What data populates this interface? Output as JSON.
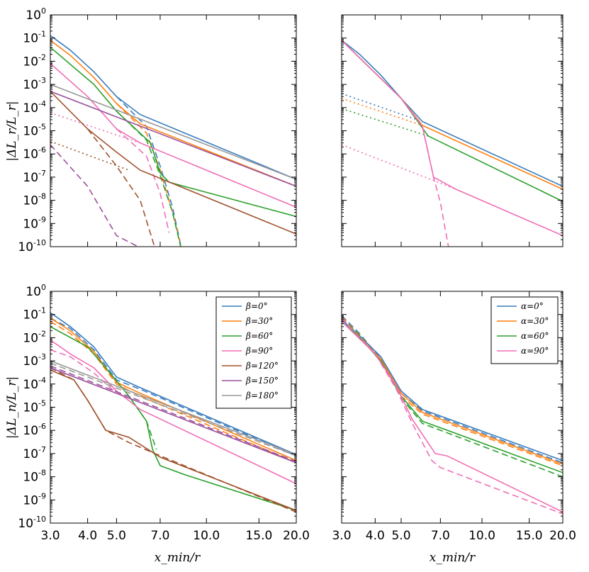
{
  "figure": {
    "ylabel_top": "|ΔL_r/L_r|",
    "ylabel_bottom": "|ΔL_n/L_r|",
    "xlabel": "x_min/r"
  },
  "chart_data": [
    {
      "id": "top-left",
      "type": "line",
      "xscale": "log",
      "yscale": "log",
      "xlim": [
        3.0,
        20.0
      ],
      "ylim": [
        1e-10,
        1
      ],
      "x_ticks": [
        "3.0",
        "4.0",
        "5.0",
        "7.0",
        "10.0",
        "15.0",
        "20.0"
      ],
      "y_ticks": [
        "10^0",
        "10^-1",
        "10^-2",
        "10^-3",
        "10^-4",
        "10^-5",
        "10^-6",
        "10^-7",
        "10^-8",
        "10^-9",
        "10^-10"
      ],
      "show_x_tick_labels": false,
      "legend": null,
      "series": [
        {
          "name": "β=0°",
          "color": "#3a7dbf",
          "style": "solid",
          "x": [
            3,
            3.5,
            4.2,
            5,
            6,
            20
          ],
          "y": [
            0.13,
            0.03,
            0.0035,
            0.0003,
            5e-05,
            8e-08
          ]
        },
        {
          "name": "β=0° (dashed)",
          "color": "#3a7dbf",
          "style": "dashed",
          "x": [
            5,
            6.3,
            7,
            7.7,
            8.2
          ],
          "y": [
            0.0003,
            1.5e-05,
            3e-07,
            5e-09,
            1.2e-10
          ]
        },
        {
          "name": "β=30°",
          "color": "#ff7f0e",
          "style": "solid",
          "x": [
            3,
            3.5,
            4.2,
            5,
            6,
            20
          ],
          "y": [
            0.08,
            0.018,
            0.002,
            0.00015,
            2e-05,
            4e-08
          ]
        },
        {
          "name": "β=30° (dashed)",
          "color": "#ff7f0e",
          "style": "dashed",
          "x": [
            5,
            6.3,
            7,
            7.7,
            8.2
          ],
          "y": [
            0.00015,
            8e-06,
            2e-07,
            3e-09,
            1.1e-10
          ]
        },
        {
          "name": "β=60°",
          "color": "#2ca02c",
          "style": "solid",
          "x": [
            3,
            4.2,
            5,
            6.5,
            7,
            7.5,
            20
          ],
          "y": [
            0.04,
            0.001,
            7e-05,
            3e-06,
            1.5e-07,
            6e-08,
            2e-09
          ]
        },
        {
          "name": "β=60° (dashed)",
          "color": "#2ca02c",
          "style": "dashed",
          "x": [
            5,
            6.3,
            7,
            7.7,
            8.2
          ],
          "y": [
            7e-05,
            4e-06,
            1.2e-07,
            3e-09,
            1e-10
          ]
        },
        {
          "name": "β=90°",
          "color": "#f06fb5",
          "style": "solid",
          "x": [
            3,
            4,
            5,
            6,
            20
          ],
          "y": [
            0.008,
            0.0003,
            1.2e-05,
            3e-06,
            5e-09
          ]
        },
        {
          "name": "β=90° (dashed)",
          "color": "#f06fb5",
          "style": "dashed",
          "x": [
            5,
            6.3,
            7,
            7.5
          ],
          "y": [
            1.2e-05,
            8e-07,
            2e-08,
            4e-10
          ]
        },
        {
          "name": "β=90° (dotted)",
          "color": "#f06fb5",
          "style": "dotted",
          "x": [
            3,
            6
          ],
          "y": [
            6e-05,
            3e-06
          ]
        },
        {
          "name": "β=120°",
          "color": "#a0522d",
          "style": "solid",
          "x": [
            3,
            4,
            5,
            6,
            20
          ],
          "y": [
            0.0005,
            1.2e-05,
            1.2e-06,
            2e-07,
            3.5e-10
          ]
        },
        {
          "name": "β=120° (dashed)",
          "color": "#a0522d",
          "style": "dashed",
          "x": [
            4,
            5,
            6,
            6.7
          ],
          "y": [
            1.2e-05,
            3e-07,
            1e-08,
            1e-10
          ]
        },
        {
          "name": "β=120° (dotted)",
          "color": "#a0522d",
          "style": "dotted",
          "x": [
            3,
            5.5
          ],
          "y": [
            3.5e-06,
            2e-07
          ]
        },
        {
          "name": "β=150°",
          "color": "#9b4f9b",
          "style": "solid",
          "x": [
            3,
            20
          ],
          "y": [
            0.0005,
            4e-08
          ]
        },
        {
          "name": "β=150° (dashed)",
          "color": "#9b4f9b",
          "style": "dashed",
          "x": [
            3,
            4,
            5,
            6
          ],
          "y": [
            2.5e-06,
            4e-08,
            3e-10,
            9e-11
          ]
        },
        {
          "name": "β=180°",
          "color": "#999999",
          "style": "solid",
          "x": [
            3,
            20
          ],
          "y": [
            0.001,
            8e-08
          ]
        }
      ]
    },
    {
      "id": "top-right",
      "type": "line",
      "xscale": "log",
      "yscale": "log",
      "xlim": [
        3.0,
        20.0
      ],
      "ylim": [
        1e-10,
        1
      ],
      "x_ticks": [
        "3.0",
        "4.0",
        "5.0",
        "7.0",
        "10.0",
        "15.0",
        "20.0"
      ],
      "y_ticks": [],
      "show_x_tick_labels": false,
      "show_y_tick_labels": false,
      "legend": null,
      "series": [
        {
          "name": "α=0°",
          "color": "#3a7dbf",
          "style": "solid",
          "x": [
            3,
            3.5,
            4.2,
            5,
            6,
            20
          ],
          "y": [
            0.08,
            0.02,
            0.0025,
            0.00025,
            2.5e-05,
            4e-08
          ]
        },
        {
          "name": "α=0° (dotted)",
          "color": "#3a7dbf",
          "style": "dotted",
          "x": [
            3,
            6
          ],
          "y": [
            0.0004,
            2.5e-05
          ]
        },
        {
          "name": "α=30°",
          "color": "#ff7f0e",
          "style": "solid",
          "x": [
            3,
            5,
            6,
            20
          ],
          "y": [
            0.08,
            0.00025,
            1.7e-05,
            3e-08
          ]
        },
        {
          "name": "α=30° (dotted)",
          "color": "#ff7f0e",
          "style": "dotted",
          "x": [
            3,
            6
          ],
          "y": [
            0.00025,
            1.7e-05
          ]
        },
        {
          "name": "α=60°",
          "color": "#2ca02c",
          "style": "solid",
          "x": [
            3,
            5,
            6.3,
            20
          ],
          "y": [
            0.08,
            0.00025,
            6e-06,
            9e-09
          ]
        },
        {
          "name": "α=60° (dotted)",
          "color": "#2ca02c",
          "style": "dotted",
          "x": [
            3,
            6.3
          ],
          "y": [
            9e-05,
            6e-06
          ]
        },
        {
          "name": "α=90°",
          "color": "#f06fb5",
          "style": "solid",
          "x": [
            3,
            5,
            6,
            6.6,
            8,
            20
          ],
          "y": [
            0.08,
            0.00025,
            1.5e-05,
            1e-07,
            3e-08,
            3e-10
          ]
        },
        {
          "name": "α=90° (dashed)",
          "color": "#f06fb5",
          "style": "dashed",
          "x": [
            6,
            6.6,
            7,
            7.5
          ],
          "y": [
            1.5e-05,
            1e-07,
            8e-09,
            1e-10
          ]
        },
        {
          "name": "α=90° (dotted)",
          "color": "#f06fb5",
          "style": "dotted",
          "x": [
            3,
            8
          ],
          "y": [
            2.5e-06,
            3e-08
          ]
        }
      ]
    },
    {
      "id": "bottom-left",
      "type": "line",
      "xscale": "log",
      "yscale": "log",
      "xlim": [
        3.0,
        20.0
      ],
      "ylim": [
        1e-10,
        1
      ],
      "x_ticks": [
        "3.0",
        "4.0",
        "5.0",
        "7.0",
        "10.0",
        "15.0",
        "20.0"
      ],
      "y_ticks": [
        "10^0",
        "10^-1",
        "10^-2",
        "10^-3",
        "10^-4",
        "10^-5",
        "10^-6",
        "10^-7",
        "10^-8",
        "10^-9",
        "10^-10"
      ],
      "show_x_tick_labels": true,
      "legend": "top-right",
      "legend_entries": [
        {
          "label": "β=0°",
          "color": "#3a7dbf"
        },
        {
          "label": "β=30°",
          "color": "#ff7f0e"
        },
        {
          "label": "β=60°",
          "color": "#2ca02c"
        },
        {
          "label": "β=90°",
          "color": "#f06fb5"
        },
        {
          "label": "β=120°",
          "color": "#a0522d"
        },
        {
          "label": "β=150°",
          "color": "#9b4f9b"
        },
        {
          "label": "β=180°",
          "color": "#999999"
        }
      ],
      "series": [
        {
          "name": "β=0°",
          "color": "#3a7dbf",
          "style": "solid",
          "x": [
            3,
            3.5,
            4.2,
            5,
            6,
            20
          ],
          "y": [
            0.12,
            0.03,
            0.004,
            0.0002,
            7e-05,
            9e-08
          ]
        },
        {
          "name": "β=0° (dashed)",
          "color": "#3a7dbf",
          "style": "dashed",
          "x": [
            3,
            3.5,
            4.2,
            5,
            6,
            20
          ],
          "y": [
            0.07,
            0.025,
            0.003,
            0.00015,
            6e-05,
            8e-08
          ]
        },
        {
          "name": "β=30°",
          "color": "#ff7f0e",
          "style": "solid",
          "x": [
            3,
            3.5,
            4.2,
            5,
            6,
            20
          ],
          "y": [
            0.07,
            0.02,
            0.0025,
            0.00012,
            4e-05,
            5e-08
          ]
        },
        {
          "name": "β=30° (dashed)",
          "color": "#ff7f0e",
          "style": "dashed",
          "x": [
            3,
            3.5,
            4.2,
            5,
            6,
            20
          ],
          "y": [
            0.05,
            0.015,
            0.002,
            0.0001,
            3e-05,
            4e-08
          ]
        },
        {
          "name": "β=60°",
          "color": "#2ca02c",
          "style": "solid",
          "x": [
            3,
            4,
            4.6,
            5.5,
            6.3,
            6.6,
            7,
            8.5,
            20
          ],
          "y": [
            0.03,
            0.004,
            0.0005,
            3e-05,
            2.5e-06,
            1.5e-07,
            3e-08,
            1.2e-08,
            3.5e-10
          ]
        },
        {
          "name": "β=60° (dashed)",
          "color": "#2ca02c",
          "style": "dashed",
          "x": [
            5.5,
            6.3,
            6.8
          ],
          "y": [
            3e-05,
            2.5e-06,
            1.5e-07
          ]
        },
        {
          "name": "β=90°",
          "color": "#f06fb5",
          "style": "solid",
          "x": [
            3,
            3.5,
            4.2,
            5,
            6,
            20
          ],
          "y": [
            0.008,
            0.002,
            0.0005,
            5e-05,
            8e-06,
            5e-09
          ]
        },
        {
          "name": "β=90° (dashed)",
          "color": "#f06fb5",
          "style": "dashed",
          "x": [
            3,
            3.5,
            4.2,
            5
          ],
          "y": [
            0.003,
            0.0015,
            0.0003,
            4e-05
          ]
        },
        {
          "name": "β=120°",
          "color": "#a0522d",
          "style": "solid",
          "x": [
            3,
            3.6,
            4,
            4.6,
            5.5,
            7,
            20
          ],
          "y": [
            0.0004,
            0.00015,
            2e-05,
            1e-06,
            5e-07,
            7e-08,
            3.5e-10
          ]
        },
        {
          "name": "β=120° (dashed)",
          "color": "#a0522d",
          "style": "dashed",
          "x": [
            3,
            3.6,
            4,
            4.6,
            5.5,
            6.5,
            20
          ],
          "y": [
            0.0005,
            0.00015,
            2e-05,
            1e-06,
            3e-07,
            1.2e-07,
            3e-10
          ]
        },
        {
          "name": "β=150°",
          "color": "#9b4f9b",
          "style": "solid",
          "x": [
            3,
            20
          ],
          "y": [
            0.0005,
            4e-08
          ]
        },
        {
          "name": "β=150° (dashed)",
          "color": "#9b4f9b",
          "style": "dashed",
          "x": [
            3,
            20
          ],
          "y": [
            0.0006,
            4.5e-08
          ]
        },
        {
          "name": "β=180°",
          "color": "#999999",
          "style": "solid",
          "x": [
            3,
            20
          ],
          "y": [
            0.001,
            9e-08
          ]
        },
        {
          "name": "β=180° (dashed)",
          "color": "#999999",
          "style": "dashed",
          "x": [
            3,
            20
          ],
          "y": [
            0.0008,
            8e-08
          ]
        }
      ]
    },
    {
      "id": "bottom-right",
      "type": "line",
      "xscale": "log",
      "yscale": "log",
      "xlim": [
        3.0,
        20.0
      ],
      "ylim": [
        1e-10,
        1
      ],
      "x_ticks": [
        "3.0",
        "4.0",
        "5.0",
        "7.0",
        "10.0",
        "15.0",
        "20.0"
      ],
      "y_ticks": [],
      "show_x_tick_labels": true,
      "show_y_tick_labels": false,
      "legend": "top-right",
      "legend_entries": [
        {
          "label": "α=0°",
          "color": "#3a7dbf"
        },
        {
          "label": "α=30°",
          "color": "#ff7f0e"
        },
        {
          "label": "α=60°",
          "color": "#2ca02c"
        },
        {
          "label": "α=90°",
          "color": "#f06fb5"
        }
      ],
      "series": [
        {
          "name": "α=0°",
          "color": "#3a7dbf",
          "style": "solid",
          "x": [
            3,
            3.5,
            4.2,
            5,
            6,
            20
          ],
          "y": [
            0.06,
            0.012,
            0.0015,
            5e-05,
            8e-06,
            5e-08
          ]
        },
        {
          "name": "α=0° (dashed)",
          "color": "#3a7dbf",
          "style": "dashed",
          "x": [
            3,
            3.5,
            4.2,
            5,
            6,
            20
          ],
          "y": [
            0.09,
            0.015,
            0.0012,
            4e-05,
            7e-06,
            4e-08
          ]
        },
        {
          "name": "α=30°",
          "color": "#ff7f0e",
          "style": "solid",
          "x": [
            3,
            3.5,
            4.2,
            5,
            6,
            20
          ],
          "y": [
            0.05,
            0.01,
            0.0012,
            4e-05,
            6e-06,
            3.5e-08
          ]
        },
        {
          "name": "α=30° (dashed)",
          "color": "#ff7f0e",
          "style": "dashed",
          "x": [
            3,
            3.5,
            4.2,
            5,
            6,
            20
          ],
          "y": [
            0.08,
            0.013,
            0.001,
            3e-05,
            5e-06,
            3e-08
          ]
        },
        {
          "name": "α=60°",
          "color": "#2ca02c",
          "style": "solid",
          "x": [
            3,
            3.5,
            4.2,
            5,
            6,
            20
          ],
          "y": [
            0.05,
            0.01,
            0.001,
            3e-05,
            2.5e-06,
            1.5e-08
          ]
        },
        {
          "name": "α=60° (dashed)",
          "color": "#2ca02c",
          "style": "dashed",
          "x": [
            3,
            3.5,
            4.2,
            5,
            6,
            20
          ],
          "y": [
            0.07,
            0.012,
            0.0009,
            2.5e-05,
            2e-06,
            1e-08
          ]
        },
        {
          "name": "α=90°",
          "color": "#f06fb5",
          "style": "solid",
          "x": [
            3,
            4,
            4.8,
            5.5,
            6.7,
            7.4,
            20
          ],
          "y": [
            0.05,
            0.002,
            8e-05,
            3e-06,
            1e-07,
            8e-08,
            3e-10
          ]
        },
        {
          "name": "α=90° (dashed)",
          "color": "#f06fb5",
          "style": "dashed",
          "x": [
            3,
            4,
            4.8,
            5.5,
            6.5,
            7,
            20
          ],
          "y": [
            0.07,
            0.002,
            6e-05,
            2e-06,
            5e-08,
            2.5e-08,
            2.5e-10
          ]
        }
      ]
    }
  ]
}
